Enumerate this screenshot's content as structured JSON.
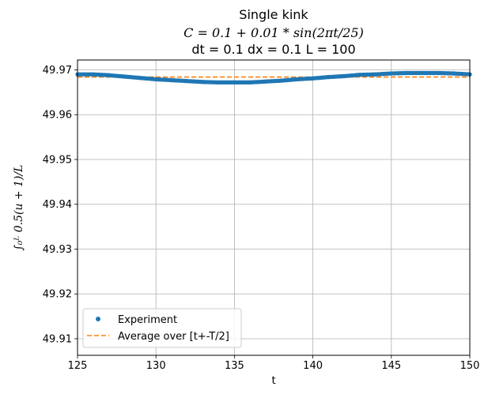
{
  "chart_data": {
    "type": "scatter",
    "title_lines": [
      "Single kink",
      "C = 0.1 + 0.01 * sin(2πt/25)",
      "dt = 0.1 dx = 0.1 L = 100"
    ],
    "xlabel": "t",
    "ylabel": "∫₀ᴸ 0.5(u + 1)/L",
    "xlim": [
      125,
      150
    ],
    "ylim": [
      49.9063,
      49.9722
    ],
    "xticks": [
      "125",
      "130",
      "135",
      "140",
      "145",
      "150"
    ],
    "yticks": [
      "49.91",
      "49.92",
      "49.93",
      "49.94",
      "49.95",
      "49.96",
      "49.97"
    ],
    "grid": true,
    "legend_position": "lower-left",
    "series": [
      {
        "name": "Experiment",
        "style": "points",
        "color": "#1f77b4",
        "x": [
          125,
          126,
          127,
          128,
          129,
          130,
          131,
          132,
          133,
          134,
          135,
          136,
          137,
          138,
          139,
          140,
          141,
          142,
          143,
          144,
          145,
          146,
          147,
          148,
          149,
          150
        ],
        "y": [
          49.969,
          49.969,
          49.9688,
          49.9685,
          49.9682,
          49.9679,
          49.9677,
          49.9675,
          49.9673,
          49.9672,
          49.9672,
          49.9672,
          49.9674,
          49.9676,
          49.9679,
          49.9681,
          49.9684,
          49.9686,
          49.9689,
          49.969,
          49.9692,
          49.9693,
          49.9693,
          49.9693,
          49.9692,
          49.969
        ]
      },
      {
        "name": "Average over [t+-T/2]",
        "style": "dashed-line",
        "color": "#ff7f0e",
        "x": [
          125,
          150
        ],
        "y": [
          49.9684,
          49.9684
        ]
      }
    ]
  }
}
